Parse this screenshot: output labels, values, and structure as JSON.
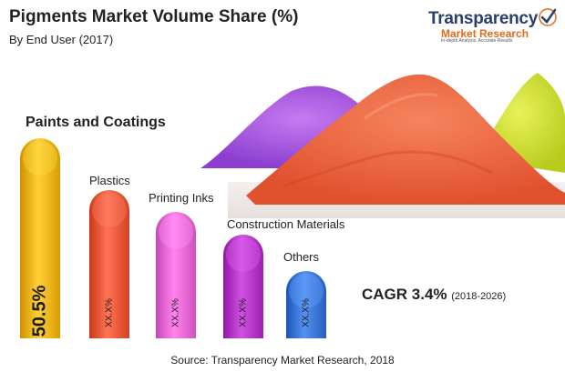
{
  "header": {
    "title": "Pigments Market Volume Share (%)",
    "subtitle": "By End User (2017)"
  },
  "logo": {
    "name": "Transparency",
    "sub": "Market Research",
    "tagline": "In-depth Analysis. Accurate Results"
  },
  "chart_data": {
    "type": "bar",
    "categories": [
      "Paints and Coatings",
      "Plastics",
      "Printing Inks",
      "Construction Materials",
      "Others"
    ],
    "data_labels": [
      "50.5%",
      "XX.X%",
      "XX.X%",
      "XX.X%",
      "XX.X%"
    ],
    "values": [
      50.5,
      null,
      null,
      null,
      null
    ],
    "title": "Pigments Market Volume Share (%)",
    "subtitle": "By End User (2017)",
    "colors": [
      "#f2b61c",
      "#ee5a3c",
      "#e86ad6",
      "#b63ac8",
      "#3d78d8"
    ],
    "legend": "none",
    "grid": false
  },
  "cagr": {
    "label": "CAGR 3.4%",
    "range": "(2018-2026)"
  },
  "source": "Source: Transparency Market Research, 2018"
}
